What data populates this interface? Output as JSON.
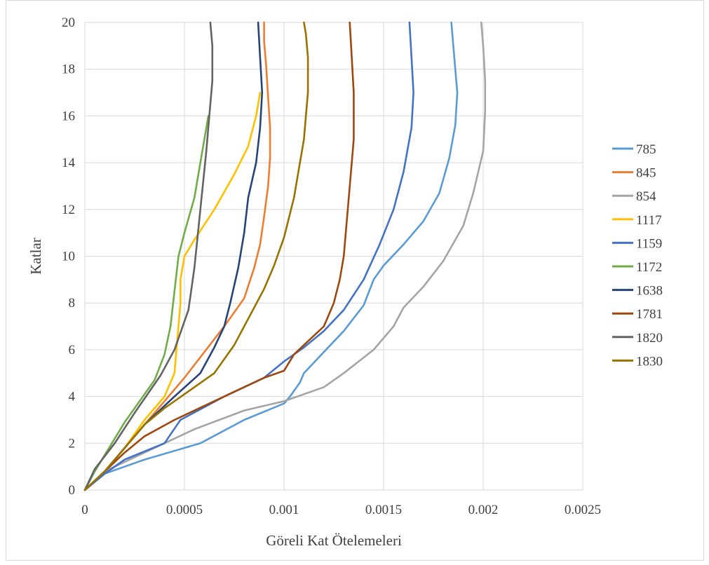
{
  "chart_data": {
    "type": "line",
    "title": "",
    "xlabel": "Göreli Kat Ötelemeleri",
    "ylabel": "Katlar",
    "xlim": [
      0,
      0.0025
    ],
    "ylim": [
      0,
      20
    ],
    "x_ticks": [
      "0",
      "0.0005",
      "0.001",
      "0.0015",
      "0.002",
      "0.0025"
    ],
    "y_ticks": [
      "0",
      "2",
      "4",
      "6",
      "8",
      "10",
      "12",
      "14",
      "16",
      "18",
      "20"
    ],
    "grid": true,
    "legend_position": "right",
    "series": [
      {
        "name": "785",
        "color": "#5B9BD5",
        "points": [
          [
            0,
            0
          ],
          [
            0.0001,
            0.7
          ],
          [
            0.0003,
            1.3
          ],
          [
            0.00058,
            2
          ],
          [
            0.0008,
            3
          ],
          [
            0.001,
            3.7
          ],
          [
            0.00103,
            4
          ],
          [
            0.00108,
            4.6
          ],
          [
            0.0011,
            5
          ],
          [
            0.0012,
            5.9
          ],
          [
            0.0013,
            6.8
          ],
          [
            0.0014,
            7.9
          ],
          [
            0.00145,
            9
          ],
          [
            0.0015,
            9.6
          ],
          [
            0.0016,
            10.5
          ],
          [
            0.0017,
            11.5
          ],
          [
            0.00178,
            12.7
          ],
          [
            0.00183,
            14.2
          ],
          [
            0.00186,
            15.6
          ],
          [
            0.00187,
            17
          ],
          [
            0.00186,
            18
          ],
          [
            0.00185,
            19
          ],
          [
            0.00184,
            20
          ]
        ]
      },
      {
        "name": "845",
        "color": "#ED7D31",
        "points": [
          [
            0,
            0
          ],
          [
            0.0001,
            0.8
          ],
          [
            0.0002,
            1.8
          ],
          [
            0.0003,
            2.8
          ],
          [
            0.0004,
            3.8
          ],
          [
            0.0005,
            4.8
          ],
          [
            0.0006,
            5.9
          ],
          [
            0.0007,
            7
          ],
          [
            0.0008,
            8.2
          ],
          [
            0.00085,
            9.5
          ],
          [
            0.00088,
            10.5
          ],
          [
            0.0009,
            11.7
          ],
          [
            0.00092,
            13
          ],
          [
            0.00093,
            14.2
          ],
          [
            0.00093,
            15.5
          ],
          [
            0.00092,
            16.8
          ],
          [
            0.00091,
            18.2
          ],
          [
            0.0009,
            19.2
          ],
          [
            0.0009,
            20
          ]
        ]
      },
      {
        "name": "854",
        "color": "#A5A5A5",
        "points": [
          [
            0,
            0
          ],
          [
            0.0001,
            0.8
          ],
          [
            0.0003,
            1.6
          ],
          [
            0.00055,
            2.6
          ],
          [
            0.0008,
            3.4
          ],
          [
            0.001,
            3.8
          ],
          [
            0.0012,
            4.4
          ],
          [
            0.0013,
            5
          ],
          [
            0.00145,
            6
          ],
          [
            0.00155,
            7
          ],
          [
            0.0016,
            7.8
          ],
          [
            0.0017,
            8.7
          ],
          [
            0.0018,
            9.8
          ],
          [
            0.0019,
            11.3
          ],
          [
            0.00195,
            12.7
          ],
          [
            0.002,
            14.5
          ],
          [
            0.00201,
            16.2
          ],
          [
            0.00201,
            17.5
          ],
          [
            0.002,
            19
          ],
          [
            0.00199,
            20
          ]
        ]
      },
      {
        "name": "1117",
        "color": "#FFC000",
        "points": [
          [
            0,
            0
          ],
          [
            0.0001,
            0.8
          ],
          [
            0.0002,
            1.8
          ],
          [
            0.0003,
            3
          ],
          [
            0.0004,
            4
          ],
          [
            0.00045,
            5
          ],
          [
            0.00046,
            6
          ],
          [
            0.00047,
            7
          ],
          [
            0.00048,
            8
          ],
          [
            0.00048,
            9
          ],
          [
            0.0005,
            10
          ],
          [
            0.00055,
            10.7
          ],
          [
            0.00065,
            12
          ],
          [
            0.00075,
            13.5
          ],
          [
            0.00082,
            14.7
          ],
          [
            0.00086,
            16
          ],
          [
            0.00088,
            17
          ]
        ]
      },
      {
        "name": "1159",
        "color": "#4472C4",
        "points": [
          [
            0,
            0
          ],
          [
            0.0001,
            0.7
          ],
          [
            0.0002,
            1.3
          ],
          [
            0.0004,
            2
          ],
          [
            0.00048,
            3
          ],
          [
            0.0007,
            4
          ],
          [
            0.0009,
            4.8
          ],
          [
            0.001,
            5.5
          ],
          [
            0.0011,
            6.1
          ],
          [
            0.0012,
            6.8
          ],
          [
            0.0013,
            7.7
          ],
          [
            0.0014,
            9
          ],
          [
            0.00148,
            10.5
          ],
          [
            0.00155,
            12
          ],
          [
            0.0016,
            13.6
          ],
          [
            0.00164,
            15.5
          ],
          [
            0.00165,
            17
          ],
          [
            0.00164,
            18.5
          ],
          [
            0.00163,
            20
          ]
        ]
      },
      {
        "name": "1172",
        "color": "#70AD47",
        "points": [
          [
            0,
            0
          ],
          [
            5e-05,
            0.8
          ],
          [
            0.0001,
            1.5
          ],
          [
            0.0002,
            2.9
          ],
          [
            0.00035,
            4.7
          ],
          [
            0.0004,
            5.8
          ],
          [
            0.00043,
            7
          ],
          [
            0.00045,
            8.5
          ],
          [
            0.00047,
            10
          ],
          [
            0.0005,
            11
          ],
          [
            0.00055,
            12.5
          ],
          [
            0.00058,
            14
          ],
          [
            0.0006,
            15
          ],
          [
            0.00062,
            16
          ]
        ]
      },
      {
        "name": "1638",
        "color": "#264478",
        "points": [
          [
            0,
            0
          ],
          [
            0.0001,
            0.8
          ],
          [
            0.0002,
            1.8
          ],
          [
            0.0003,
            2.8
          ],
          [
            0.00045,
            4
          ],
          [
            0.00058,
            5
          ],
          [
            0.00065,
            6.1
          ],
          [
            0.0007,
            7
          ],
          [
            0.00073,
            8
          ],
          [
            0.00077,
            9.5
          ],
          [
            0.0008,
            11
          ],
          [
            0.00082,
            12.5
          ],
          [
            0.00086,
            14
          ],
          [
            0.00088,
            15.5
          ],
          [
            0.00089,
            17
          ],
          [
            0.00088,
            18.5
          ],
          [
            0.00087,
            20
          ]
        ]
      },
      {
        "name": "1781",
        "color": "#9E480E",
        "points": [
          [
            0,
            0
          ],
          [
            0.0001,
            0.8
          ],
          [
            0.0002,
            1.6
          ],
          [
            0.0003,
            2.3
          ],
          [
            0.00045,
            3
          ],
          [
            0.0006,
            3.6
          ],
          [
            0.00075,
            4.2
          ],
          [
            0.0009,
            4.8
          ],
          [
            0.001,
            5.1
          ],
          [
            0.00105,
            5.8
          ],
          [
            0.0011,
            6.2
          ],
          [
            0.0012,
            7
          ],
          [
            0.00125,
            8
          ],
          [
            0.00128,
            9
          ],
          [
            0.0013,
            10
          ],
          [
            0.00132,
            12
          ],
          [
            0.00134,
            14
          ],
          [
            0.00135,
            15
          ],
          [
            0.00135,
            17
          ],
          [
            0.00134,
            18.5
          ],
          [
            0.00133,
            20
          ]
        ]
      },
      {
        "name": "1820",
        "color": "#636363",
        "points": [
          [
            0,
            0
          ],
          [
            5e-05,
            0.9
          ],
          [
            0.00015,
            2
          ],
          [
            0.00025,
            3.3
          ],
          [
            0.00038,
            4.9
          ],
          [
            0.00045,
            6
          ],
          [
            0.00052,
            7.7
          ],
          [
            0.00055,
            9.5
          ],
          [
            0.00058,
            12
          ],
          [
            0.00061,
            14.5
          ],
          [
            0.00063,
            16.5
          ],
          [
            0.00064,
            17.5
          ],
          [
            0.00064,
            19
          ],
          [
            0.00063,
            20
          ]
        ]
      },
      {
        "name": "1830",
        "color": "#997300",
        "points": [
          [
            0,
            0
          ],
          [
            0.0001,
            0.8
          ],
          [
            0.0002,
            1.8
          ],
          [
            0.0003,
            2.8
          ],
          [
            0.0004,
            3.5
          ],
          [
            0.0005,
            4.1
          ],
          [
            0.00065,
            5
          ],
          [
            0.00075,
            6.2
          ],
          [
            0.00085,
            7.8
          ],
          [
            0.0009,
            8.6
          ],
          [
            0.00095,
            9.6
          ],
          [
            0.001,
            10.8
          ],
          [
            0.00105,
            12.5
          ],
          [
            0.00108,
            14
          ],
          [
            0.0011,
            15
          ],
          [
            0.00111,
            16
          ],
          [
            0.00112,
            17
          ],
          [
            0.00112,
            18.5
          ],
          [
            0.00111,
            19.5
          ],
          [
            0.0011,
            20
          ]
        ]
      }
    ]
  }
}
